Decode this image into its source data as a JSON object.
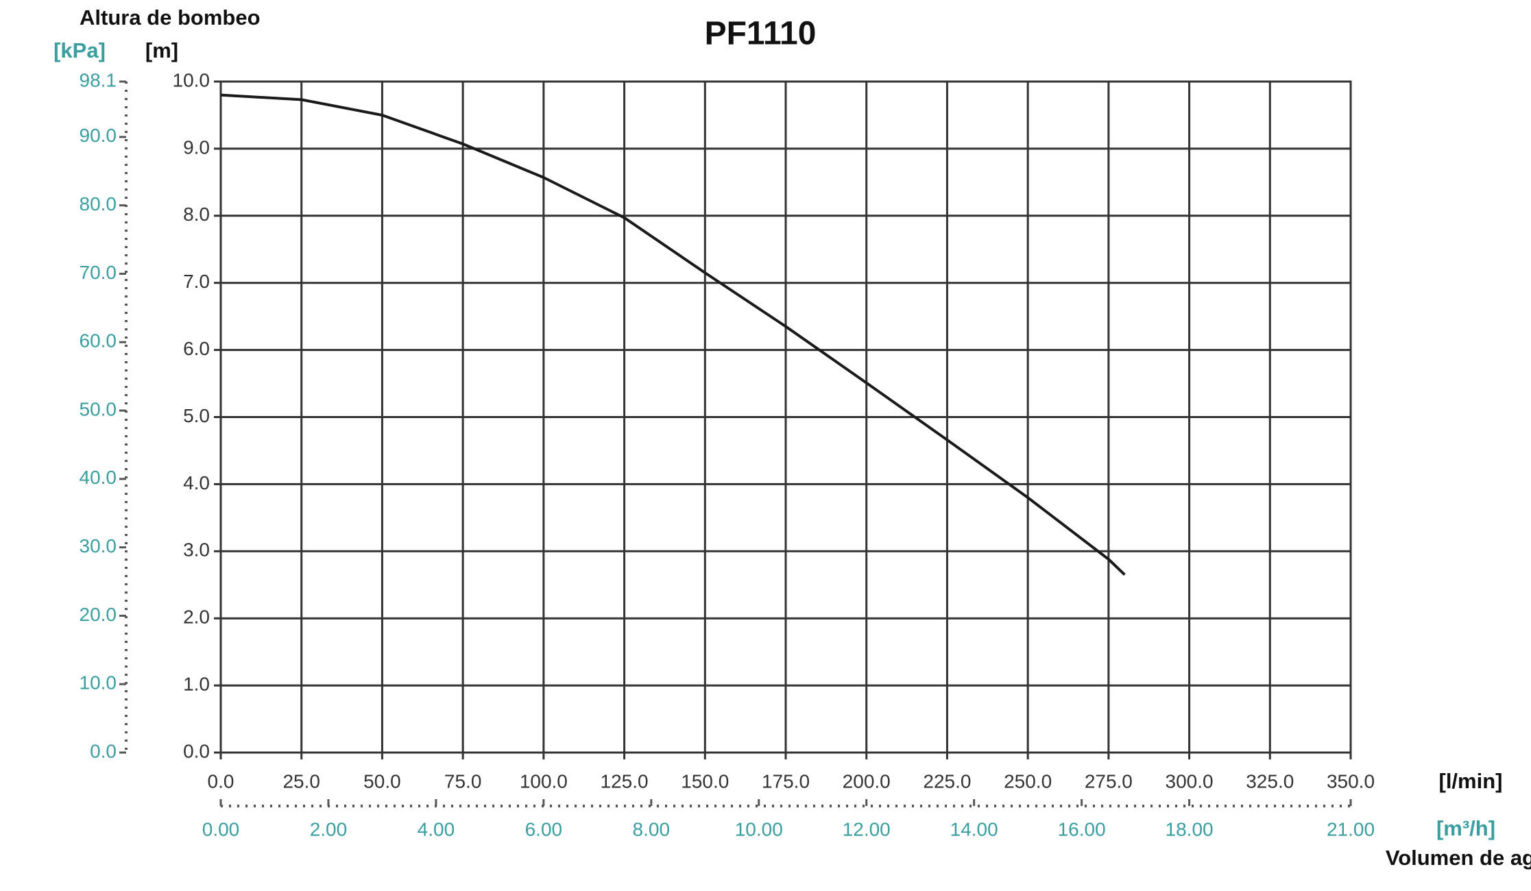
{
  "chart_data": {
    "type": "line",
    "title": "PF1110",
    "y_label": "Altura de bombeo",
    "y_unit": "[m]",
    "y2_unit": "[kPa]",
    "x_label": "Volumen de agua",
    "x_unit": "[l/min]",
    "x2_unit": "[m³/h]",
    "x": [
      0,
      25,
      50,
      75,
      100,
      125,
      150,
      175,
      200,
      225,
      250,
      275,
      280
    ],
    "series": [
      {
        "color": "#1a1a1a",
        "values": [
          9.8,
          9.73,
          9.5,
          9.07,
          8.57,
          7.97,
          7.15,
          6.35,
          5.51,
          4.66,
          3.8,
          2.88,
          2.65
        ]
      }
    ],
    "xlim": [
      0,
      350
    ],
    "xticks": [
      {
        "value": 0,
        "label": "0.0"
      },
      {
        "value": 25,
        "label": "25.0"
      },
      {
        "value": 50,
        "label": "50.0"
      },
      {
        "value": 75,
        "label": "75.0"
      },
      {
        "value": 100,
        "label": "100.0"
      },
      {
        "value": 125,
        "label": "125.0"
      },
      {
        "value": 150,
        "label": "150.0"
      },
      {
        "value": 175,
        "label": "175.0"
      },
      {
        "value": 200,
        "label": "200.0"
      },
      {
        "value": 225,
        "label": "225.0"
      },
      {
        "value": 250,
        "label": "250.0"
      },
      {
        "value": 275,
        "label": "275.0"
      },
      {
        "value": 300,
        "label": "300.0"
      },
      {
        "value": 325,
        "label": "325.0"
      },
      {
        "value": 350,
        "label": "350.0"
      }
    ],
    "ylim": [
      0,
      10
    ],
    "yticks": [
      {
        "value": 0,
        "label": "0.0"
      },
      {
        "value": 1,
        "label": "1.0"
      },
      {
        "value": 2,
        "label": "2.0"
      },
      {
        "value": 3,
        "label": "3.0"
      },
      {
        "value": 4,
        "label": "4.0"
      },
      {
        "value": 5,
        "label": "5.0"
      },
      {
        "value": 6,
        "label": "6.0"
      },
      {
        "value": 7,
        "label": "7.0"
      },
      {
        "value": 8,
        "label": "8.0"
      },
      {
        "value": 9,
        "label": "9.0"
      },
      {
        "value": 10,
        "label": "10.0"
      }
    ],
    "y2lim": [
      0,
      98.1
    ],
    "y2ticks": [
      {
        "value": 0,
        "label": "0.0"
      },
      {
        "value": 10,
        "label": "10.0"
      },
      {
        "value": 20,
        "label": "20.0"
      },
      {
        "value": 30,
        "label": "30.0"
      },
      {
        "value": 40,
        "label": "40.0"
      },
      {
        "value": 50,
        "label": "50.0"
      },
      {
        "value": 60,
        "label": "60.0"
      },
      {
        "value": 70,
        "label": "70.0"
      },
      {
        "value": 80,
        "label": "80.0"
      },
      {
        "value": 90,
        "label": "90.0"
      },
      98.1
    ],
    "x2lim": [
      0,
      21
    ],
    "x2ticks": [
      {
        "value": 0,
        "label": "0.00"
      },
      {
        "value": 2,
        "label": "2.00"
      },
      {
        "value": 4,
        "label": "4.00"
      },
      {
        "value": 6,
        "label": "6.00"
      },
      {
        "value": 8,
        "label": "8.00"
      },
      {
        "value": 10,
        "label": "10.00"
      },
      {
        "value": 12,
        "label": "12.00"
      },
      {
        "value": 14,
        "label": "14.00"
      },
      {
        "value": 16,
        "label": "16.00"
      },
      {
        "value": 18,
        "label": "18.00"
      },
      {
        "value": 21,
        "label": "21.00"
      }
    ],
    "grid": true,
    "secondary_color": "#3a9ea0"
  }
}
